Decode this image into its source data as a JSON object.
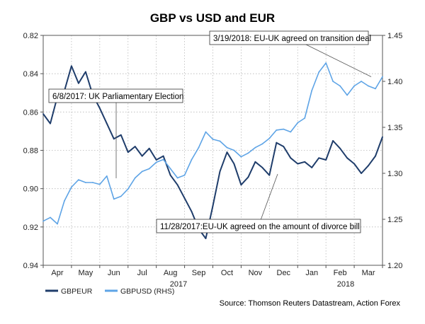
{
  "chart_data": {
    "type": "line",
    "title": "GBP vs USD and EUR",
    "x_tick_labels": [
      "Apr",
      "May",
      "Jun",
      "Jul",
      "Aug",
      "Sep",
      "Oct",
      "Nov",
      "Dec",
      "Jan",
      "Feb",
      "Mar"
    ],
    "x_year_labels": [
      "2017",
      "2018"
    ],
    "x_range_months": [
      0,
      12
    ],
    "left_axis": {
      "ylim": [
        0.82,
        0.94
      ],
      "inverted": true,
      "tick_values": [
        0.82,
        0.84,
        0.86,
        0.88,
        0.9,
        0.92,
        0.94
      ],
      "tick_labels": [
        "0.82",
        "0.84",
        "0.86",
        "0.88",
        "0.90",
        "0.92",
        "0.94"
      ]
    },
    "right_axis": {
      "ylim": [
        1.2,
        1.45
      ],
      "tick_values": [
        1.2,
        1.25,
        1.3,
        1.35,
        1.4,
        1.45
      ],
      "tick_labels": [
        "1.20",
        "1.25",
        "1.30",
        "1.35",
        "1.40",
        "1.45"
      ]
    },
    "grid": true,
    "series": [
      {
        "name": "GBPEUR",
        "axis": "left",
        "color": "#1f3d6b",
        "x": [
          0,
          0.25,
          0.5,
          0.75,
          1,
          1.25,
          1.5,
          1.75,
          2,
          2.25,
          2.5,
          2.75,
          3,
          3.25,
          3.5,
          3.75,
          4,
          4.25,
          4.5,
          4.75,
          5,
          5.25,
          5.5,
          5.75,
          6,
          6.25,
          6.5,
          6.75,
          7,
          7.25,
          7.5,
          7.75,
          8,
          8.25,
          8.5,
          8.75,
          9,
          9.25,
          9.5,
          9.75,
          10,
          10.25,
          10.5,
          10.75,
          11,
          11.25,
          11.5,
          11.75,
          12
        ],
        "values": [
          0.861,
          0.866,
          0.852,
          0.849,
          0.836,
          0.845,
          0.839,
          0.851,
          0.858,
          0.866,
          0.874,
          0.872,
          0.881,
          0.878,
          0.883,
          0.879,
          0.885,
          0.883,
          0.893,
          0.898,
          0.905,
          0.912,
          0.921,
          0.926,
          0.909,
          0.891,
          0.881,
          0.887,
          0.898,
          0.894,
          0.886,
          0.889,
          0.893,
          0.876,
          0.878,
          0.884,
          0.887,
          0.886,
          0.889,
          0.884,
          0.885,
          0.875,
          0.879,
          0.884,
          0.887,
          0.892,
          0.888,
          0.883,
          0.873
        ]
      },
      {
        "name": "GBPUSD (RHS)",
        "axis": "right",
        "color": "#5ea4e6",
        "x": [
          0,
          0.25,
          0.5,
          0.75,
          1,
          1.25,
          1.5,
          1.75,
          2,
          2.25,
          2.5,
          2.75,
          3,
          3.25,
          3.5,
          3.75,
          4,
          4.25,
          4.5,
          4.75,
          5,
          5.25,
          5.5,
          5.75,
          6,
          6.25,
          6.5,
          6.75,
          7,
          7.25,
          7.5,
          7.75,
          8,
          8.25,
          8.5,
          8.75,
          9,
          9.25,
          9.5,
          9.75,
          10,
          10.25,
          10.5,
          10.75,
          11,
          11.25,
          11.5,
          11.75,
          12
        ],
        "values": [
          1.248,
          1.252,
          1.245,
          1.27,
          1.285,
          1.293,
          1.29,
          1.29,
          1.288,
          1.297,
          1.272,
          1.275,
          1.283,
          1.295,
          1.302,
          1.305,
          1.312,
          1.315,
          1.305,
          1.295,
          1.298,
          1.315,
          1.328,
          1.345,
          1.337,
          1.335,
          1.328,
          1.325,
          1.318,
          1.322,
          1.328,
          1.332,
          1.338,
          1.347,
          1.348,
          1.345,
          1.355,
          1.36,
          1.39,
          1.41,
          1.42,
          1.4,
          1.395,
          1.385,
          1.395,
          1.4,
          1.395,
          1.392,
          1.405
        ]
      }
    ],
    "annotations": [
      {
        "text": "3/19/2018: EU-UK agreed on transition deal",
        "x_month": 11.6,
        "axis": "right",
        "y_value": 1.405
      },
      {
        "text": "6/8/2017: UK Parliamentary Election",
        "x_month": 2.25,
        "axis": "left",
        "y_value": 0.893
      },
      {
        "text": "11/28/2017:EU-UK agreed on the amount of divorce bill",
        "x_month": 7.92,
        "axis": "left",
        "y_value": 0.892
      }
    ],
    "legend": [
      {
        "label": "GBPEUR",
        "color": "#1f3d6b"
      },
      {
        "label": "GBPUSD (RHS)",
        "color": "#5ea4e6"
      }
    ],
    "legend_position": "bottom-left"
  },
  "source_text": "Source: Thomson Reuters Datastream, Action Forex"
}
